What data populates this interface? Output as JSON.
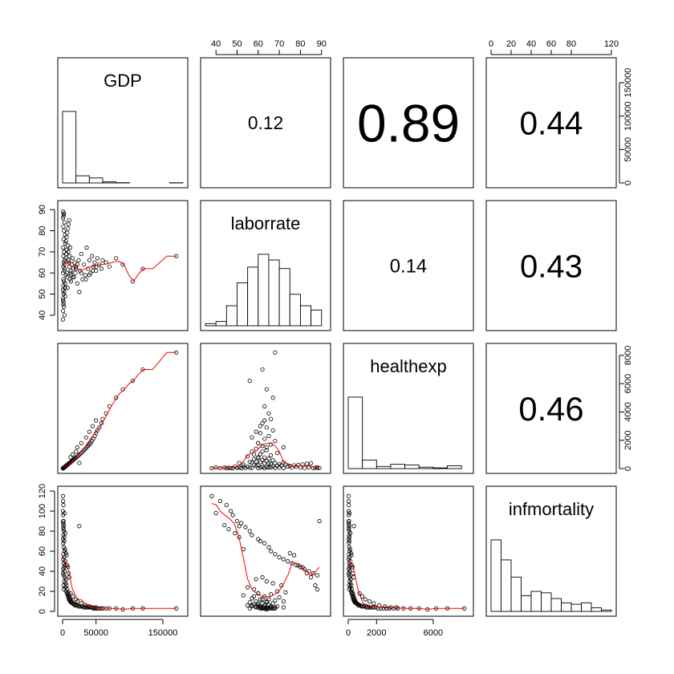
{
  "chart_data": {
    "type": "scatter",
    "variables": [
      {
        "name": "GDP",
        "range": [
          0,
          180000
        ],
        "ticks": [
          0,
          50000,
          150000
        ],
        "tick_labels": [
          "0",
          "50000",
          "150000"
        ],
        "ticks_right": [
          0,
          50000,
          100000,
          150000
        ],
        "tick_labels_right": [
          "0",
          "50000",
          "100000",
          "150000"
        ]
      },
      {
        "name": "laborrate",
        "range": [
          35,
          92
        ],
        "ticks": [
          40,
          50,
          60,
          70,
          80,
          90
        ],
        "tick_labels": [
          "40",
          "50",
          "60",
          "70",
          "80",
          "90"
        ]
      },
      {
        "name": "healthexp",
        "range": [
          0,
          8500
        ],
        "ticks": [
          0,
          2000,
          6000
        ],
        "tick_labels": [
          "0",
          "2000",
          "6000"
        ],
        "ticks_right": [
          0,
          2000,
          4000,
          6000,
          8000
        ],
        "tick_labels_right": [
          "0",
          "2000",
          "4000",
          "6000",
          "8000"
        ]
      },
      {
        "name": "infmortality",
        "range": [
          0,
          120
        ],
        "ticks": [
          0,
          20,
          40,
          60,
          80,
          100,
          120
        ],
        "tick_labels": [
          "0",
          "20",
          "40",
          "60",
          "80",
          "100",
          "120"
        ],
        "ticks_top": [
          0,
          20,
          40,
          60,
          80,
          120
        ],
        "tick_labels_top": [
          "0",
          "20",
          "40",
          "60",
          "80",
          "120"
        ]
      }
    ],
    "correlations": [
      {
        "row": 0,
        "col": 1,
        "label": "0.12",
        "value": 0.12
      },
      {
        "row": 0,
        "col": 2,
        "label": "0.89",
        "value": 0.89
      },
      {
        "row": 0,
        "col": 3,
        "label": "0.44",
        "value": 0.44
      },
      {
        "row": 1,
        "col": 2,
        "label": "0.14",
        "value": 0.14
      },
      {
        "row": 1,
        "col": 3,
        "label": "0.43",
        "value": 0.43
      },
      {
        "row": 2,
        "col": 3,
        "label": "0.46",
        "value": 0.46
      }
    ],
    "histograms": [
      {
        "variable": "GDP",
        "bins": [
          0,
          20000,
          40000,
          60000,
          80000,
          100000,
          120000,
          140000,
          160000,
          180000
        ],
        "density": [
          1.0,
          0.1,
          0.07,
          0.015,
          0.004,
          0,
          0,
          0,
          0.003
        ]
      },
      {
        "variable": "laborrate",
        "bins": [
          35,
          40,
          45,
          50,
          55,
          60,
          65,
          70,
          75,
          80,
          85,
          90
        ],
        "density": [
          0.03,
          0.06,
          0.28,
          0.6,
          0.82,
          1.0,
          0.92,
          0.8,
          0.44,
          0.28,
          0.22
        ]
      },
      {
        "variable": "healthexp",
        "bins": [
          0,
          1000,
          2000,
          3000,
          4000,
          5000,
          6000,
          7000,
          8000
        ],
        "density": [
          1.0,
          0.12,
          0.03,
          0.06,
          0.05,
          0.02,
          0.01,
          0.04
        ]
      },
      {
        "variable": "infmortality",
        "bins": [
          0,
          10,
          20,
          30,
          40,
          50,
          60,
          70,
          80,
          90,
          100,
          110,
          120
        ],
        "density": [
          1.0,
          0.72,
          0.48,
          0.22,
          0.28,
          0.26,
          0.18,
          0.12,
          0.1,
          0.12,
          0.05,
          0.02
        ]
      }
    ],
    "observations": {
      "fields": [
        "GDP",
        "laborrate",
        "healthexp",
        "infmortality"
      ],
      "rows": [
        [
          500,
          38,
          20,
          115
        ],
        [
          800,
          42,
          30,
          110
        ],
        [
          1200,
          45,
          40,
          106
        ],
        [
          600,
          47,
          25,
          100
        ],
        [
          900,
          48,
          35,
          96
        ],
        [
          1500,
          50,
          50,
          90
        ],
        [
          700,
          52,
          28,
          88
        ],
        [
          1100,
          54,
          40,
          84
        ],
        [
          2000,
          56,
          60,
          80
        ],
        [
          1300,
          57,
          55,
          76
        ],
        [
          800,
          60,
          30,
          72
        ],
        [
          2500,
          61,
          80,
          70
        ],
        [
          1000,
          63,
          40,
          68
        ],
        [
          1800,
          65,
          70,
          64
        ],
        [
          3000,
          66,
          100,
          60
        ],
        [
          1200,
          68,
          50,
          57
        ],
        [
          2200,
          70,
          80,
          54
        ],
        [
          900,
          72,
          35,
          52
        ],
        [
          4000,
          74,
          150,
          50
        ],
        [
          1500,
          76,
          60,
          48
        ],
        [
          3500,
          78,
          130,
          46
        ],
        [
          2000,
          80,
          70,
          44
        ],
        [
          1100,
          82,
          45,
          42
        ],
        [
          2800,
          84,
          100,
          40
        ],
        [
          600,
          86,
          30,
          38
        ],
        [
          1700,
          88,
          60,
          36
        ],
        [
          900,
          89,
          40,
          90
        ],
        [
          3200,
          62,
          110,
          34
        ],
        [
          5000,
          59,
          180,
          32
        ],
        [
          2600,
          64,
          90,
          30
        ],
        [
          4500,
          67,
          160,
          28
        ],
        [
          6000,
          71,
          220,
          26
        ],
        [
          3800,
          55,
          140,
          24
        ],
        [
          7000,
          58,
          250,
          22
        ],
        [
          5500,
          69,
          200,
          20
        ],
        [
          8000,
          73,
          300,
          19
        ],
        [
          6500,
          60,
          240,
          18
        ],
        [
          9000,
          66,
          340,
          17
        ],
        [
          7500,
          53,
          280,
          16
        ],
        [
          10000,
          63,
          380,
          15
        ],
        [
          8500,
          70,
          320,
          14
        ],
        [
          11000,
          57,
          420,
          13
        ],
        [
          9500,
          65,
          360,
          12
        ],
        [
          12000,
          61,
          450,
          12
        ],
        [
          10500,
          68,
          400,
          11
        ],
        [
          13000,
          59,
          500,
          10
        ],
        [
          11500,
          72,
          430,
          10
        ],
        [
          14000,
          64,
          540,
          9
        ],
        [
          12500,
          56,
          470,
          9
        ],
        [
          15000,
          67,
          580,
          8
        ],
        [
          16000,
          62,
          620,
          8
        ],
        [
          17000,
          58,
          660,
          7
        ],
        [
          18000,
          65,
          700,
          7
        ],
        [
          19000,
          60,
          740,
          6
        ],
        [
          20000,
          63,
          780,
          6
        ],
        [
          22000,
          55,
          860,
          6
        ],
        [
          24000,
          66,
          940,
          5
        ],
        [
          26000,
          61,
          1020,
          5
        ],
        [
          28000,
          69,
          1100,
          5
        ],
        [
          30000,
          57,
          1200,
          5
        ],
        [
          32000,
          64,
          1300,
          4
        ],
        [
          34000,
          59,
          1400,
          4
        ],
        [
          36000,
          72,
          1500,
          4
        ],
        [
          38000,
          62,
          1600,
          4
        ],
        [
          40000,
          66,
          1700,
          4
        ],
        [
          42000,
          60,
          1800,
          4
        ],
        [
          44000,
          68,
          1950,
          4
        ],
        [
          46000,
          63,
          2100,
          3
        ],
        [
          48000,
          65,
          2300,
          3
        ],
        [
          50000,
          61,
          2500,
          3
        ],
        [
          52000,
          67,
          2700,
          3
        ],
        [
          55000,
          64,
          2900,
          3
        ],
        [
          58000,
          62,
          3200,
          3
        ],
        [
          60000,
          66,
          3500,
          3
        ],
        [
          65000,
          65,
          3900,
          3
        ],
        [
          70000,
          63,
          4400,
          3
        ],
        [
          80000,
          67,
          5000,
          3
        ],
        [
          90000,
          64,
          5600,
          2
        ],
        [
          105000,
          56,
          6200,
          3
        ],
        [
          120000,
          62,
          7000,
          3
        ],
        [
          170000,
          68,
          8200,
          3
        ],
        [
          3000,
          40,
          90,
          98
        ],
        [
          2000,
          44,
          70,
          86
        ],
        [
          1500,
          46,
          55,
          82
        ],
        [
          4000,
          49,
          150,
          78
        ],
        [
          2500,
          51,
          90,
          74
        ],
        [
          3500,
          53,
          130,
          62
        ],
        [
          5000,
          75,
          190,
          58
        ],
        [
          6000,
          77,
          230,
          56
        ],
        [
          7000,
          79,
          260,
          46
        ],
        [
          8000,
          81,
          300,
          44
        ],
        [
          9000,
          83,
          340,
          38
        ],
        [
          10000,
          85,
          380,
          34
        ],
        [
          1500,
          87,
          60,
          26
        ],
        [
          2000,
          88,
          80,
          22
        ],
        [
          25000,
          51,
          400,
          85
        ],
        [
          12000,
          60,
          800,
          18
        ],
        [
          15000,
          58,
          1000,
          15
        ],
        [
          20000,
          62,
          1200,
          12
        ],
        [
          22000,
          64,
          1500,
          10
        ],
        [
          28000,
          60,
          1800,
          8
        ],
        [
          35000,
          57,
          2200,
          6
        ],
        [
          40000,
          59,
          2600,
          5
        ],
        [
          45000,
          61,
          3000,
          4
        ],
        [
          50000,
          63,
          3400,
          4
        ]
      ]
    },
    "smoother_color": "#ff0000",
    "point_color": "#000000"
  }
}
